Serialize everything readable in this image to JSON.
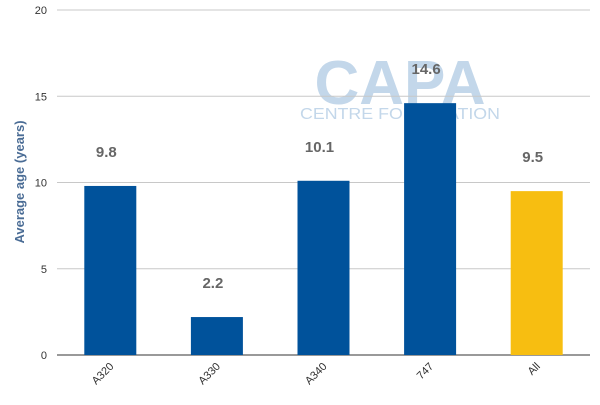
{
  "chart_data": {
    "type": "bar",
    "title": "",
    "xlabel": "",
    "ylabel": "Average age (years)",
    "ylim": [
      0,
      20
    ],
    "yticks": [
      0,
      5,
      10,
      15,
      20
    ],
    "grid": true,
    "categories": [
      "A320",
      "A330",
      "A340",
      "747",
      "All"
    ],
    "values": [
      9.8,
      2.2,
      10.1,
      14.6,
      9.5
    ],
    "data_labels": [
      "9.8",
      "2.2",
      "10.1",
      "14.6",
      "9.5"
    ],
    "colors": [
      "#00529b",
      "#00529b",
      "#00529b",
      "#00529b",
      "#f7be11"
    ]
  },
  "watermark": {
    "logo_text": "CAPA",
    "sub_text": "CENTRE FOR AVIATION",
    "color": "#c3d7ea"
  },
  "style": {
    "grid_color": "#c8c8c8",
    "axis_color": "#333333",
    "ylabel_color": "#4a6c95",
    "data_label_color": "#666666"
  }
}
